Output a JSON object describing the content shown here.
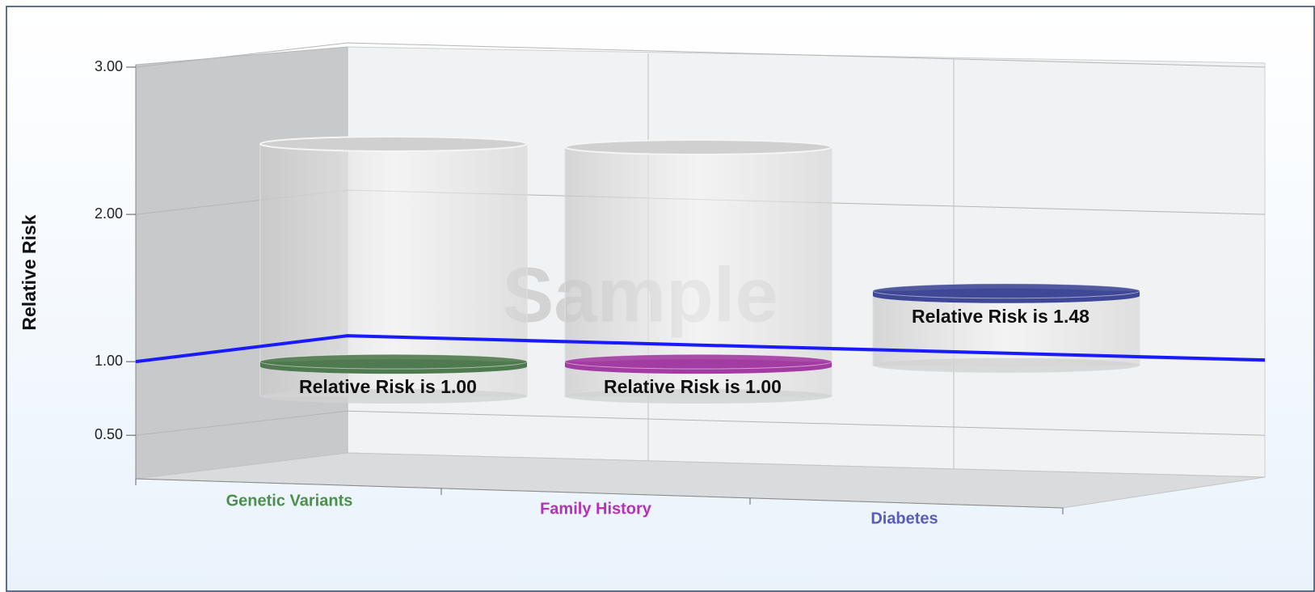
{
  "chart_data": {
    "type": "cylinder",
    "y_axis_label": "Relative Risk",
    "watermark": "Sample",
    "categories": [
      "Genetic Variants",
      "Family History",
      "Diabetes"
    ],
    "category_colors": [
      "#4e8f4e",
      "#b531b5",
      "#5b5bbd"
    ],
    "values": [
      1.0,
      1.0,
      1.48
    ],
    "value_labels": [
      "Relative Risk is 1.00",
      "Relative Risk is 1.00",
      "Relative Risk is 1.48"
    ],
    "colors": [
      "#4f7a4f",
      "#a23ca2",
      "#3f4896"
    ],
    "reference_value": 1.0,
    "reference_color": "#1a1aff",
    "ylim": [
      0.21,
      3.0
    ],
    "yticks": [
      {
        "value": 0.5,
        "label": "0.50"
      },
      {
        "value": 1.0,
        "label": "1.00"
      },
      {
        "value": 2.0,
        "label": "2.00"
      },
      {
        "value": 3.0,
        "label": "3.00"
      }
    ],
    "grid": true
  }
}
